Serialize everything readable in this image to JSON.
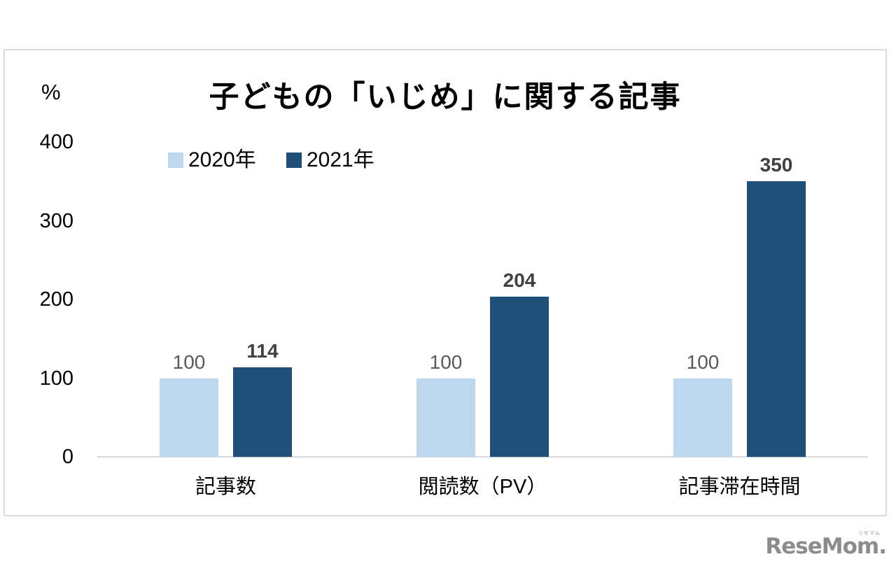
{
  "chart_data": {
    "type": "bar",
    "title": "子どもの「いじめ」に関する記事",
    "unit_label": "%",
    "categories": [
      "記事数",
      "閲読数（PV）",
      "記事滞在時間"
    ],
    "series": [
      {
        "name": "2020年",
        "color": "#BDD7EE",
        "values": [
          100,
          100,
          100
        ]
      },
      {
        "name": "2021年",
        "color": "#1F4E79",
        "values": [
          114,
          204,
          350
        ]
      }
    ],
    "ylabel": "%",
    "ylim": [
      0,
      400
    ],
    "yticks": [
      0,
      100,
      200,
      300,
      400
    ],
    "grid": false,
    "legend_position": "top-left",
    "data_labels": {
      "series_2020": [
        "100",
        "100",
        "100"
      ],
      "series_2021": [
        "114",
        "204",
        "350"
      ]
    }
  },
  "colors": {
    "bar_2020": "#BDD7EE",
    "bar_2021": "#1F4E79",
    "axis_line": "#D9D9D9",
    "frame_border": "#DADADA",
    "label_regular": "#595959",
    "label_bold": "#404040",
    "logo_gray": "#8C8C8C"
  },
  "logo": {
    "text": "ReseMom.",
    "ruby": "リセマム"
  }
}
